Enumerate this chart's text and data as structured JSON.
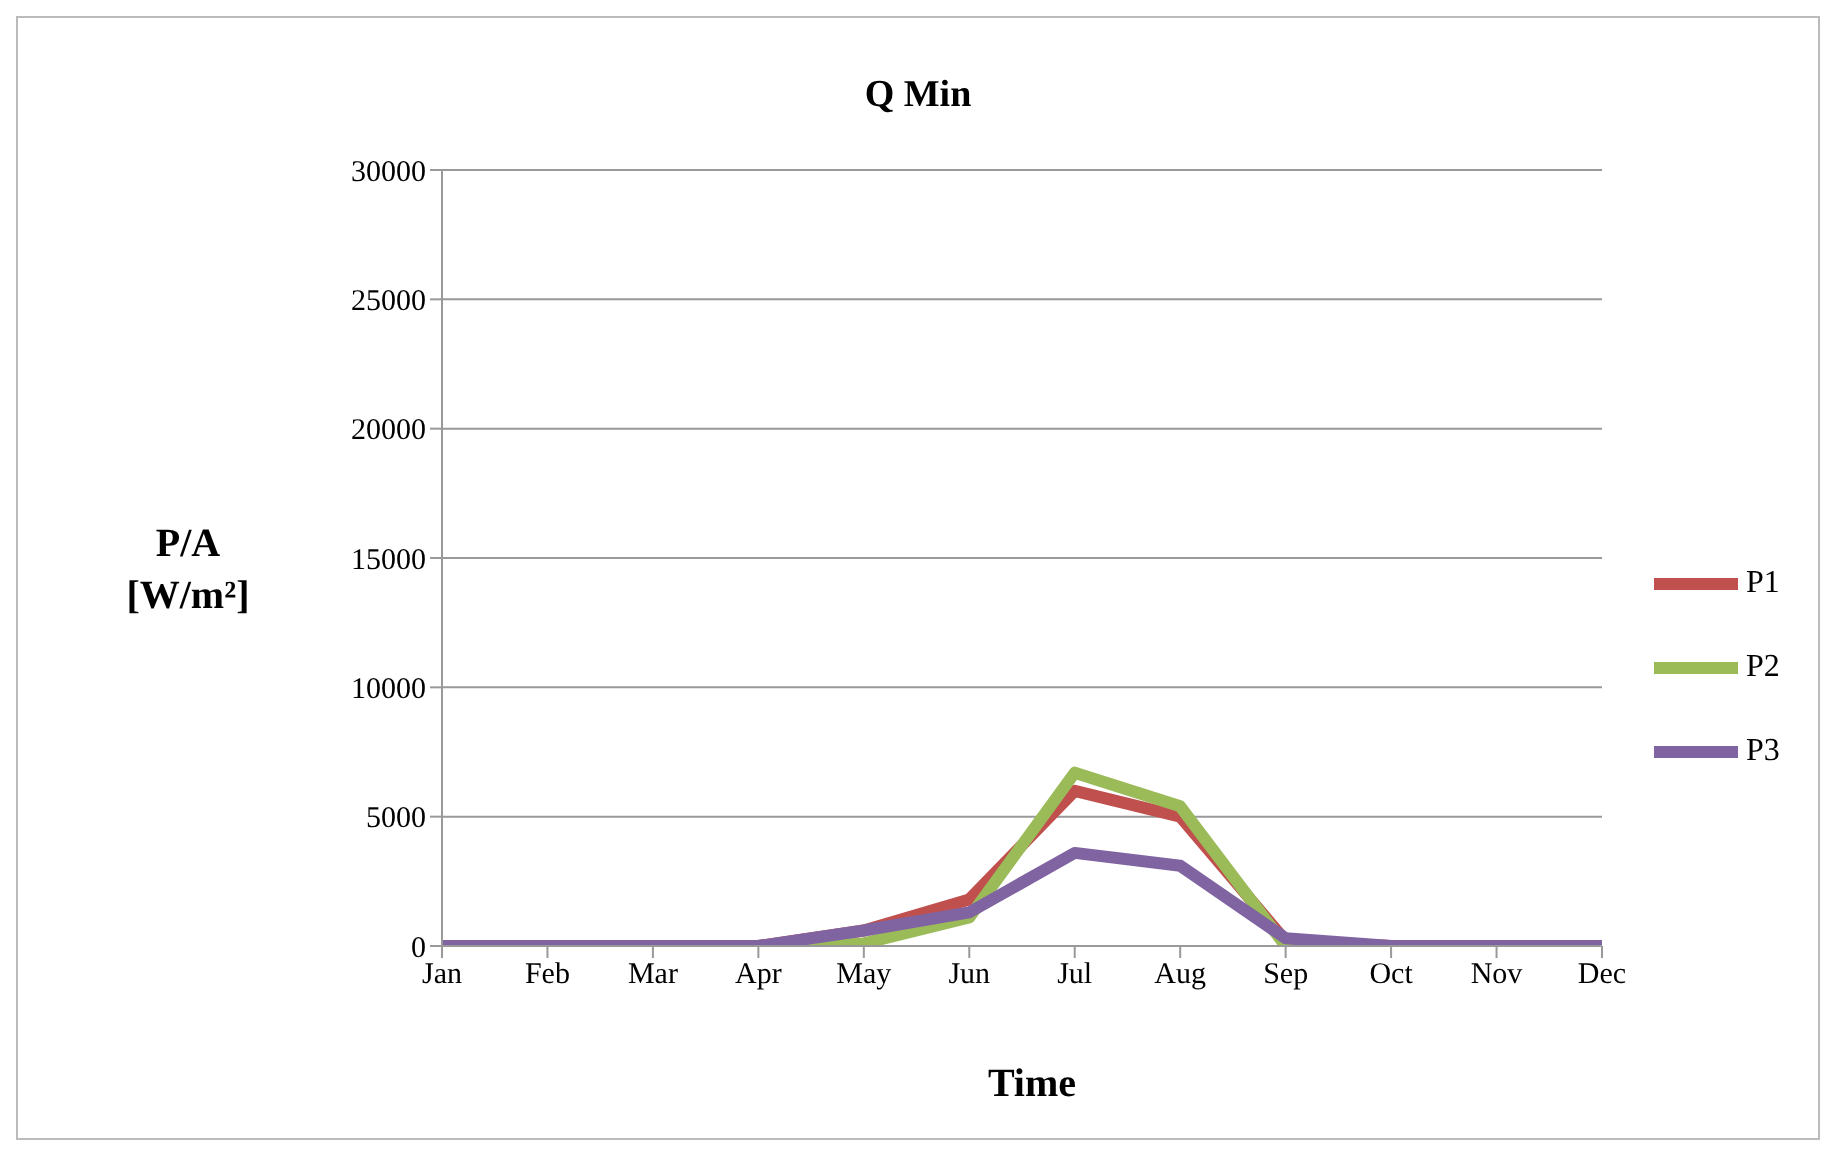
{
  "chart_data": {
    "type": "line",
    "title": "Q Min",
    "xlabel": "Time",
    "ylabel": "P/A [W/m²]",
    "categories": [
      "Jan",
      "Feb",
      "Mar",
      "Apr",
      "May",
      "Jun",
      "Jul",
      "Aug",
      "Sep",
      "Oct",
      "Nov",
      "Dec"
    ],
    "series": [
      {
        "name": "P1",
        "color": "#c0504d",
        "values": [
          null,
          null,
          0,
          0,
          600,
          1800,
          6000,
          5000,
          200,
          0,
          null,
          null
        ]
      },
      {
        "name": "P2",
        "color": "#9bbb59",
        "values": [
          null,
          null,
          0,
          0,
          100,
          1100,
          6700,
          5400,
          0,
          0,
          null,
          null
        ]
      },
      {
        "name": "P3",
        "color": "#8064a2",
        "values": [
          0,
          0,
          0,
          0,
          600,
          1300,
          3600,
          3100,
          300,
          0,
          0,
          0
        ]
      }
    ],
    "ylim": [
      0,
      30000
    ],
    "yticks": [
      0,
      5000,
      10000,
      15000,
      20000,
      25000,
      30000
    ],
    "grid": "y",
    "legend": "right",
    "marker": "none",
    "line_style": "solid"
  }
}
